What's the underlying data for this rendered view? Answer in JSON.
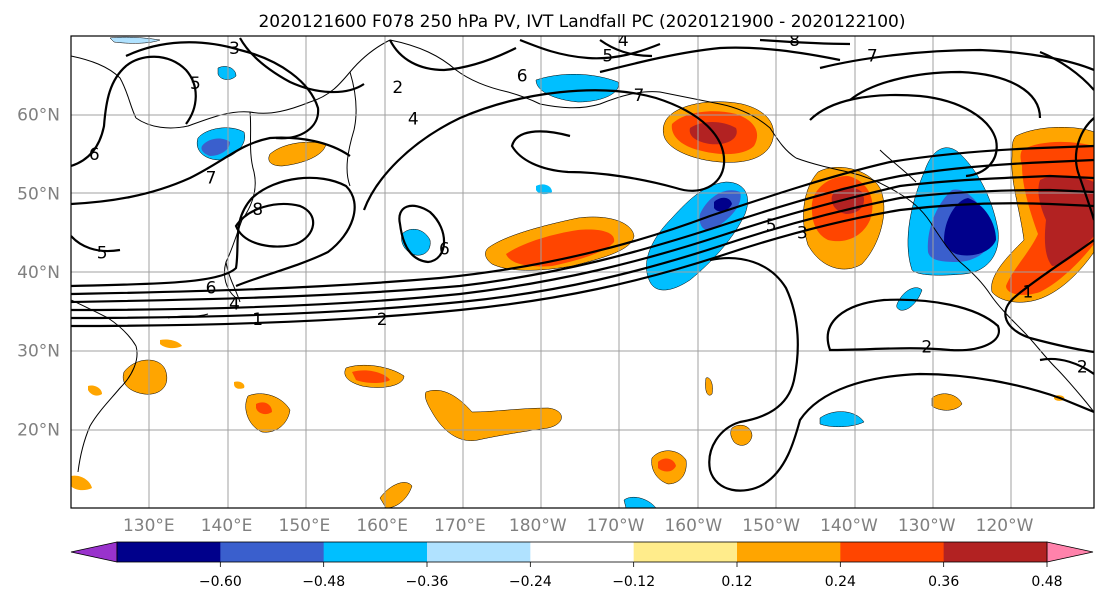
{
  "title": "2020121600 F078 250 hPa PV, IVT Landfall PC (2020121900 - 2020122100)",
  "map": {
    "lon_range": [
      120,
      251.5
    ],
    "lat_range": [
      10,
      70
    ],
    "lon_tick_values": [
      130,
      140,
      150,
      160,
      170,
      180,
      190,
      200,
      210,
      220,
      230,
      240
    ],
    "lon_tick_labels": [
      "130°E",
      "140°E",
      "150°E",
      "160°E",
      "170°E",
      "180°W",
      "170°W",
      "160°W",
      "150°W",
      "140°W",
      "130°W",
      "120°W"
    ],
    "lat_tick_values": [
      20,
      30,
      40,
      50,
      60
    ],
    "lat_tick_labels": [
      "20°N",
      "30°N",
      "40°N",
      "50°N",
      "60°N"
    ],
    "grid": true,
    "grid_color": "#a0a0a0"
  },
  "colorbar": {
    "levels": [
      -0.6,
      -0.48,
      -0.36,
      -0.24,
      -0.12,
      0.12,
      0.24,
      0.36,
      0.48,
      0.6
    ],
    "tick_labels": [
      "−0.60",
      "−0.48",
      "−0.36",
      "−0.24",
      "−0.12",
      "0.12",
      "0.24",
      "0.36",
      "0.48",
      "0.60"
    ],
    "colors": [
      "#9932cc",
      "#00008b",
      "#3a5fcd",
      "#00bfff",
      "#b0e2ff",
      "#ffffff",
      "#ffec8b",
      "#ffa500",
      "#ff4500",
      "#b22222",
      "#ff82ab"
    ],
    "extend": "both"
  },
  "contour_labels": [
    {
      "text": "5",
      "lon": 136,
      "lat": 64
    },
    {
      "text": "3",
      "lon": 141,
      "lat": 68.5
    },
    {
      "text": "6",
      "lon": 123,
      "lat": 55
    },
    {
      "text": "4",
      "lon": 164,
      "lat": 59.5
    },
    {
      "text": "7",
      "lon": 138,
      "lat": 52
    },
    {
      "text": "8",
      "lon": 144,
      "lat": 48
    },
    {
      "text": "5",
      "lon": 124,
      "lat": 42.5
    },
    {
      "text": "6",
      "lon": 138,
      "lat": 38
    },
    {
      "text": "4",
      "lon": 141,
      "lat": 36
    },
    {
      "text": "1",
      "lon": 144,
      "lat": 34
    },
    {
      "text": "2",
      "lon": 160,
      "lat": 34
    },
    {
      "text": "2",
      "lon": 162,
      "lat": 63.5
    },
    {
      "text": "6",
      "lon": 168,
      "lat": 43
    },
    {
      "text": "5",
      "lon": 189,
      "lat": 67.5
    },
    {
      "text": "4",
      "lon": 191,
      "lat": 69.5
    },
    {
      "text": "6",
      "lon": 178,
      "lat": 65
    },
    {
      "text": "7",
      "lon": 193,
      "lat": 62.5
    },
    {
      "text": "8",
      "lon": 213,
      "lat": 69.5
    },
    {
      "text": "7",
      "lon": 223,
      "lat": 67.5
    },
    {
      "text": "5",
      "lon": 210,
      "lat": 46
    },
    {
      "text": "3",
      "lon": 214,
      "lat": 45
    },
    {
      "text": "2",
      "lon": 230,
      "lat": 30.5
    },
    {
      "text": "1",
      "lon": 243,
      "lat": 37.5
    },
    {
      "text": "2",
      "lon": 250,
      "lat": 28
    }
  ]
}
